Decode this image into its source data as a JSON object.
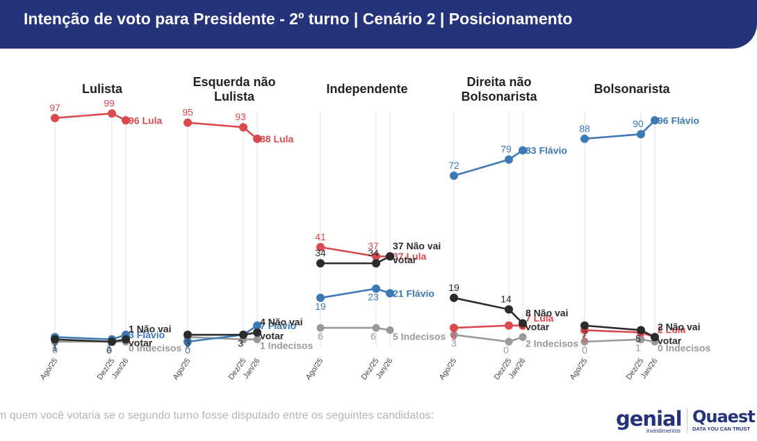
{
  "header": {
    "title": "Intenção de voto para Presidente - 2º turno | Cenário 2 | Posicionamento"
  },
  "chart_data": {
    "type": "line",
    "title": "Intenção de voto para Presidente - 2º turno | Cenário 2 | Posicionamento",
    "x": [
      "Ago/25",
      "Dez/25",
      "Jan/26"
    ],
    "ylim": [
      0,
      100
    ],
    "series_colors": {
      "Lula": "#d9494e",
      "Flávio": "#3d7ab5",
      "Não vai votar": "#2b2b2b",
      "Indecisos": "#999999"
    },
    "panels": [
      {
        "title": "Lulista",
        "series": [
          {
            "name": "Lula",
            "values": [
              97,
              99,
              96
            ],
            "point_labels": [
              "97",
              "99",
              ""
            ],
            "end_label": "96 Lula"
          },
          {
            "name": "Flávio",
            "values": [
              2,
              1,
              3
            ],
            "point_labels": [
              "2",
              "1",
              ""
            ],
            "end_label": "3 Flávio"
          },
          {
            "name": "Não vai votar",
            "values": [
              1,
              0,
              1
            ],
            "point_labels": [
              "1",
              "0",
              ""
            ],
            "end_label": "1 Não vai votar"
          },
          {
            "name": "Indecisos",
            "values": [
              0,
              0,
              0
            ],
            "point_labels": [
              "0",
              "",
              ""
            ],
            "end_label": "0 Indecisos"
          }
        ]
      },
      {
        "title": "Esquerda não Lulista",
        "series": [
          {
            "name": "Lula",
            "values": [
              95,
              93,
              88
            ],
            "point_labels": [
              "95",
              "93",
              ""
            ],
            "end_label": "88 Lula"
          },
          {
            "name": "Flávio",
            "values": [
              0,
              3,
              7
            ],
            "point_labels": [
              "0",
              "3",
              ""
            ],
            "end_label": "7 Flávio"
          },
          {
            "name": "Não vai votar",
            "values": [
              3,
              3,
              4
            ],
            "point_labels": [
              "3",
              "3",
              ""
            ],
            "end_label": "4 Não vai votar"
          },
          {
            "name": "Indecisos",
            "values": [
              2,
              1,
              1
            ],
            "point_labels": [
              "2",
              "",
              ""
            ],
            "end_label": "1 Indecisos"
          }
        ]
      },
      {
        "title": "Independente",
        "series": [
          {
            "name": "Lula",
            "values": [
              41,
              37,
              37
            ],
            "point_labels": [
              "41",
              "37",
              ""
            ],
            "end_label": "37 Lula"
          },
          {
            "name": "Flávio",
            "values": [
              19,
              23,
              21
            ],
            "point_labels": [
              "19",
              "23",
              ""
            ],
            "end_label": "21 Flávio"
          },
          {
            "name": "Não vai votar",
            "values": [
              34,
              34,
              37
            ],
            "point_labels": [
              "34",
              "34",
              ""
            ],
            "end_label": "37 Não vai votar"
          },
          {
            "name": "Indecisos",
            "values": [
              6,
              6,
              5
            ],
            "point_labels": [
              "6",
              "6",
              ""
            ],
            "end_label": "5 Indecisos"
          }
        ]
      },
      {
        "title": "Direita não Bolsonarista",
        "series": [
          {
            "name": "Lula",
            "values": [
              6,
              7,
              7
            ],
            "point_labels": [
              "6",
              "",
              ""
            ],
            "end_label": "7 Lula"
          },
          {
            "name": "Flávio",
            "values": [
              72,
              79,
              83
            ],
            "point_labels": [
              "72",
              "79",
              ""
            ],
            "end_label": "83 Flávio"
          },
          {
            "name": "Não vai votar",
            "values": [
              19,
              14,
              8
            ],
            "point_labels": [
              "19",
              "14",
              ""
            ],
            "end_label": "8 Não vai votar"
          },
          {
            "name": "Indecisos",
            "values": [
              3,
              0,
              2
            ],
            "point_labels": [
              "3",
              "0",
              ""
            ],
            "end_label": "2 Indecisos"
          }
        ]
      },
      {
        "title": "Bolsonarista",
        "series": [
          {
            "name": "Lula",
            "values": [
              5,
              4,
              2
            ],
            "point_labels": [
              "5",
              "",
              ""
            ],
            "end_label": "2 Lula"
          },
          {
            "name": "Flávio",
            "values": [
              88,
              90,
              96
            ],
            "point_labels": [
              "88",
              "90",
              ""
            ],
            "end_label": "96 Flávio"
          },
          {
            "name": "Não vai votar",
            "values": [
              7,
              5,
              2
            ],
            "point_labels": [
              "7",
              "5",
              ""
            ],
            "end_label": "2 Não vai votar"
          },
          {
            "name": "Indecisos",
            "values": [
              0,
              1,
              0
            ],
            "point_labels": [
              "0",
              "1",
              ""
            ],
            "end_label": "0 Indecisos"
          }
        ]
      }
    ]
  },
  "footnote": "m quem você votaria se o segundo turno fosse disputado entre os seguintes candidatos:",
  "logos": {
    "genial": "genial",
    "genial_sub": "investimentos",
    "quaest": "Quaest",
    "quaest_sub": "DATA YOU CAN TRUST"
  }
}
